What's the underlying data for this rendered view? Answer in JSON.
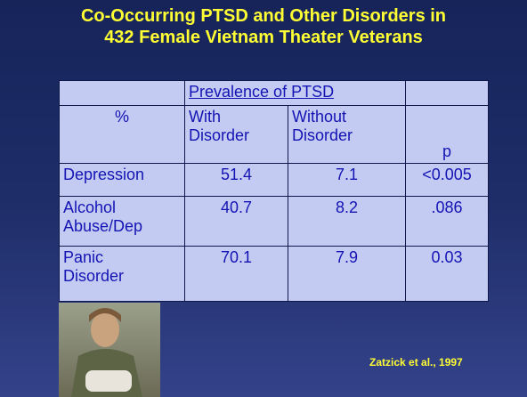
{
  "header": {
    "title_lines": [
      "Co-Occurring PTSD and Other Disorders in",
      "432 Female Vietnam Theater Veterans"
    ]
  },
  "table": {
    "group_header": "Prevalence of PTSD",
    "columns": [
      "%",
      "With Disorder",
      "Without Disorder",
      "p"
    ],
    "rows": [
      [
        "Depression",
        "51.4",
        "7.1",
        "<0.005"
      ],
      [
        "Alcohol Abuse/Dep",
        "40.7",
        "8.2",
        ".086"
      ],
      [
        "Panic Disorder",
        "70.1",
        "7.9",
        "0.03"
      ]
    ]
  },
  "citation": "Zatzick et al., 1997"
}
